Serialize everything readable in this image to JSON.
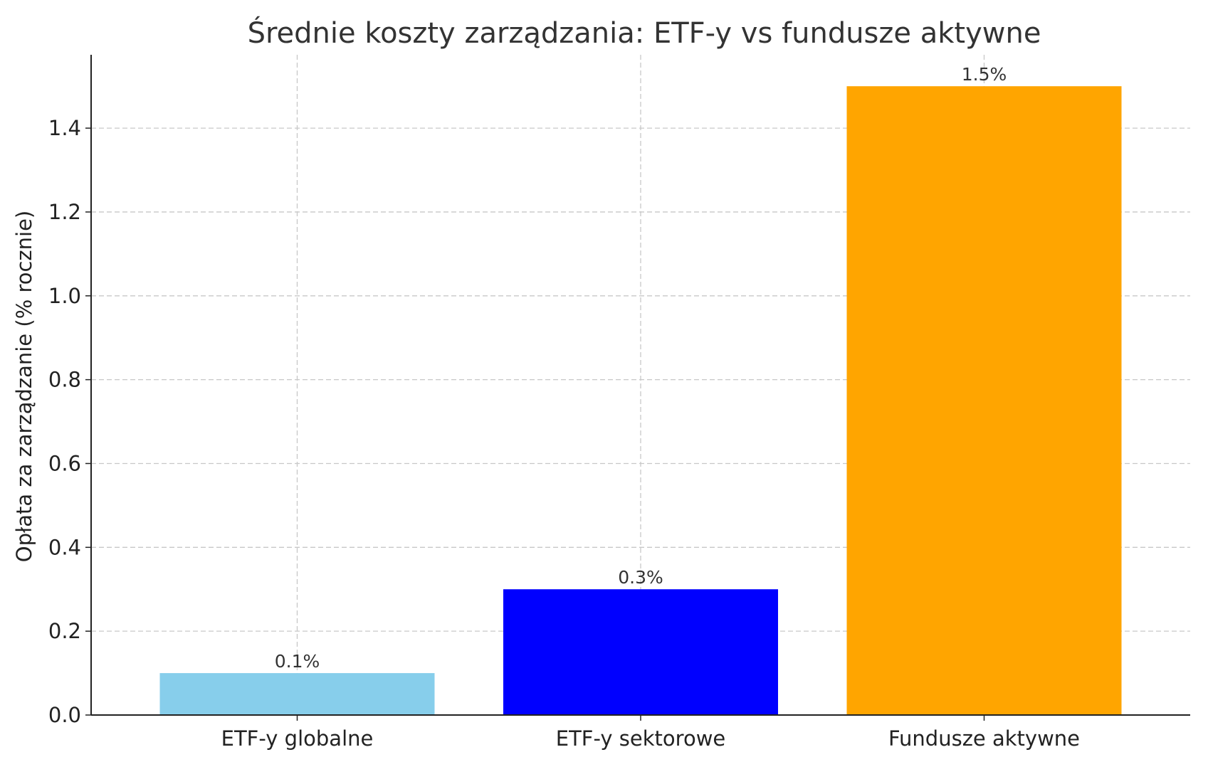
{
  "chart_data": {
    "type": "bar",
    "title": "Średnie koszty zarządzania: ETF-y vs fundusze aktywne",
    "xlabel": "",
    "ylabel": "Opłata za zarządzanie (% rocznie)",
    "categories": [
      "ETF-y globalne",
      "ETF-y sektorowe",
      "Fundusze aktywne"
    ],
    "values": [
      0.1,
      0.3,
      1.5
    ],
    "data_labels": [
      "0.1%",
      "0.3%",
      "1.5%"
    ],
    "colors": [
      "#87ceeb",
      "#0000ff",
      "#ffa500"
    ],
    "ylim": [
      0,
      1.575
    ],
    "yticks": [
      0.0,
      0.2,
      0.4,
      0.6,
      0.8,
      1.0,
      1.2,
      1.4
    ],
    "ytick_labels": [
      "0.0",
      "0.2",
      "0.4",
      "0.6",
      "0.8",
      "1.0",
      "1.2",
      "1.4"
    ],
    "grid": true,
    "legend": "none"
  }
}
